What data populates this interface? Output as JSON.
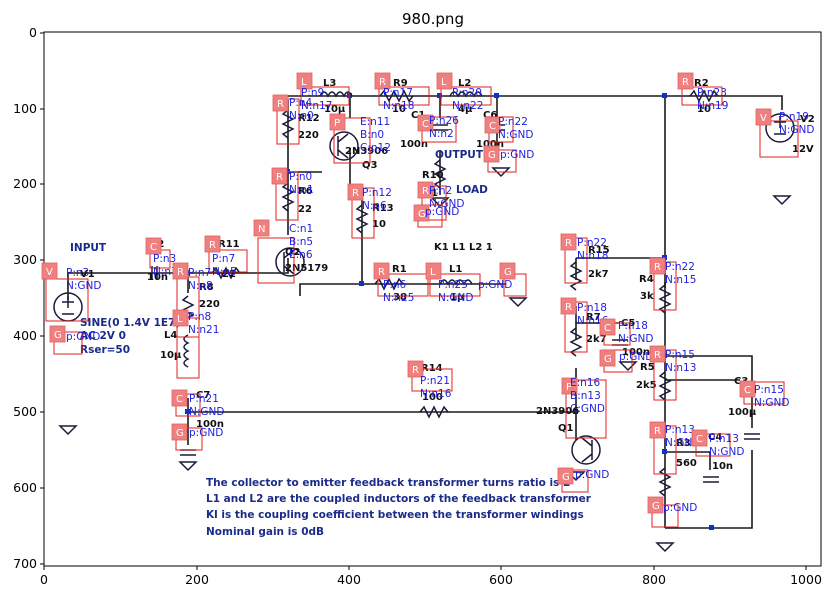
{
  "figure": {
    "title": "980.png",
    "x_ticks": [
      "0",
      "200",
      "400",
      "600",
      "800",
      "1000"
    ],
    "y_ticks": [
      "0",
      "100",
      "200",
      "300",
      "400",
      "500",
      "600",
      "700"
    ]
  },
  "component_labels": {
    "L3": "L3",
    "L3v": "10µ",
    "R9": "R9",
    "R9v": "10",
    "C1": "C1",
    "C1v": "100n",
    "L2": "L2",
    "L2v": "4µ",
    "C6": "C6",
    "C6v": "100n",
    "R2": "R2",
    "R2v": "10",
    "V2": "V2",
    "V2v": "12V",
    "R12": "R12",
    "R12v": "220",
    "Q3": "Q3",
    "Q3v": "2N3906",
    "OUT": "OUTPUT",
    "R6": "R6",
    "R6v": "22",
    "R10": "R10",
    "R10v": "51",
    "LOAD": "LOAD",
    "R13": "R13",
    "R13v": "10",
    "INPUT": "INPUT",
    "C2": "C2",
    "C2v": "10n",
    "R11": "R11",
    "R11v": "22",
    "Q2": "Q2",
    "Q2v": "2N5179",
    "K": "K1 L1 L2 1",
    "R1": "R1",
    "R1v": "38",
    "L1": "L1",
    "L1v": "1µ",
    "R15": "R15",
    "R15v": "2k7",
    "R4": "R4",
    "R4v": "3k",
    "V1": "V1",
    "SINE": "SINE(0 1.4V 1E7)",
    "AC": "AC 2V 0",
    "RSER": "Rser=50",
    "R8": "R8",
    "R8v": "220",
    "L4": "L4",
    "L4v": "10µ",
    "R7": "R7",
    "R7v": "2k7",
    "C5": "C5",
    "C5v": "100n",
    "R5": "R5",
    "R5v": "2k5",
    "C3": "C3",
    "C3v": "100µ",
    "R14": "R14",
    "R14v": "100",
    "Q1": "Q1",
    "Q1v": "2N3906",
    "C7": "C7",
    "C7v": "100n",
    "R3": "R3",
    "R3v": "560",
    "C4": "C4",
    "C4v": "10n"
  },
  "notes": [
    "The collector to emitter feedback transformer turns ratio is 2",
    "L1 and L2 are the coupled inductors of the feedback transformer",
    "Kl is the coupling coefficient between the transformer windings",
    "Nominal gain is 0dB"
  ],
  "annotations": [
    {
      "tag": "L",
      "nets": [
        "P:n9",
        "N:n17"
      ]
    },
    {
      "tag": "R",
      "nets": [
        "P:n17",
        "N:n18"
      ]
    },
    {
      "tag": "L",
      "nets": [
        "P:n20",
        "N:n22"
      ]
    },
    {
      "tag": "R",
      "nets": [
        "P:n23",
        "N:n19"
      ]
    },
    {
      "tag": "V",
      "nets": [
        "P:n19",
        "N:GND"
      ]
    },
    {
      "tag": "R",
      "nets": [
        "P:n4",
        "N:n0"
      ]
    },
    {
      "tag": "P",
      "nets": [
        "E:n11",
        "B:n0",
        "C:n12"
      ]
    },
    {
      "tag": "C",
      "nets": [
        "P:n26",
        "N:n2"
      ]
    },
    {
      "tag": "C",
      "nets": [
        "P:n22",
        "N:GND"
      ]
    },
    {
      "tag": "G",
      "nets": [
        "p:GND"
      ]
    },
    {
      "tag": "R",
      "nets": [
        "P:n0",
        "N:n1"
      ]
    },
    {
      "tag": "R",
      "nets": [
        "P:n2",
        "N:GND"
      ]
    },
    {
      "tag": "R",
      "nets": [
        "P:n12",
        "N:n6"
      ]
    },
    {
      "tag": "G",
      "nets": [
        "p:GND"
      ]
    },
    {
      "tag": "N",
      "nets": [
        "C:n1",
        "B:n5",
        "E:n6"
      ]
    },
    {
      "tag": "C",
      "nets": [
        "P:n3",
        "N:n7"
      ]
    },
    {
      "tag": "R",
      "nets": [
        "P:n7",
        "N:n5"
      ]
    },
    {
      "tag": "R",
      "nets": [
        "P:n6",
        "N:n25"
      ]
    },
    {
      "tag": "L",
      "nets": [
        "P:n25",
        "N:GND"
      ]
    },
    {
      "tag": "G",
      "nets": [
        "p:GND"
      ]
    },
    {
      "tag": "R",
      "nets": [
        "P:n22",
        "N:n18"
      ]
    },
    {
      "tag": "R",
      "nets": [
        "P:n22",
        "N:n15"
      ]
    },
    {
      "tag": "V",
      "nets": [
        "P:n3",
        "N:GND"
      ]
    },
    {
      "tag": "R",
      "nets": [
        "P:n7",
        "N:n8"
      ]
    },
    {
      "tag": "L",
      "nets": [
        "P:n8",
        "N:n21"
      ]
    },
    {
      "tag": "G",
      "nets": [
        "p:GND"
      ]
    },
    {
      "tag": "R",
      "nets": [
        "P:n18",
        "N:n16"
      ]
    },
    {
      "tag": "C",
      "nets": [
        "P:n18",
        "N:GND"
      ]
    },
    {
      "tag": "G",
      "nets": [
        "p:GND"
      ]
    },
    {
      "tag": "R",
      "nets": [
        "P:n15",
        "N:n13"
      ]
    },
    {
      "tag": "C",
      "nets": [
        "P:n15",
        "N:GND"
      ]
    },
    {
      "tag": "R",
      "nets": [
        "P:n21",
        "N:n16"
      ]
    },
    {
      "tag": "P",
      "nets": [
        "E:n16",
        "B:n13",
        "C:GND"
      ]
    },
    {
      "tag": "C",
      "nets": [
        "P:n21",
        "N:GND"
      ]
    },
    {
      "tag": "G",
      "nets": [
        "p:GND"
      ]
    },
    {
      "tag": "R",
      "nets": [
        "P:n13",
        "N:GND"
      ]
    },
    {
      "tag": "C",
      "nets": [
        "P:n13",
        "N:GND"
      ]
    },
    {
      "tag": "G",
      "nets": [
        "p:GND"
      ]
    },
    {
      "tag": "G",
      "nets": [
        "p:GND"
      ]
    }
  ]
}
